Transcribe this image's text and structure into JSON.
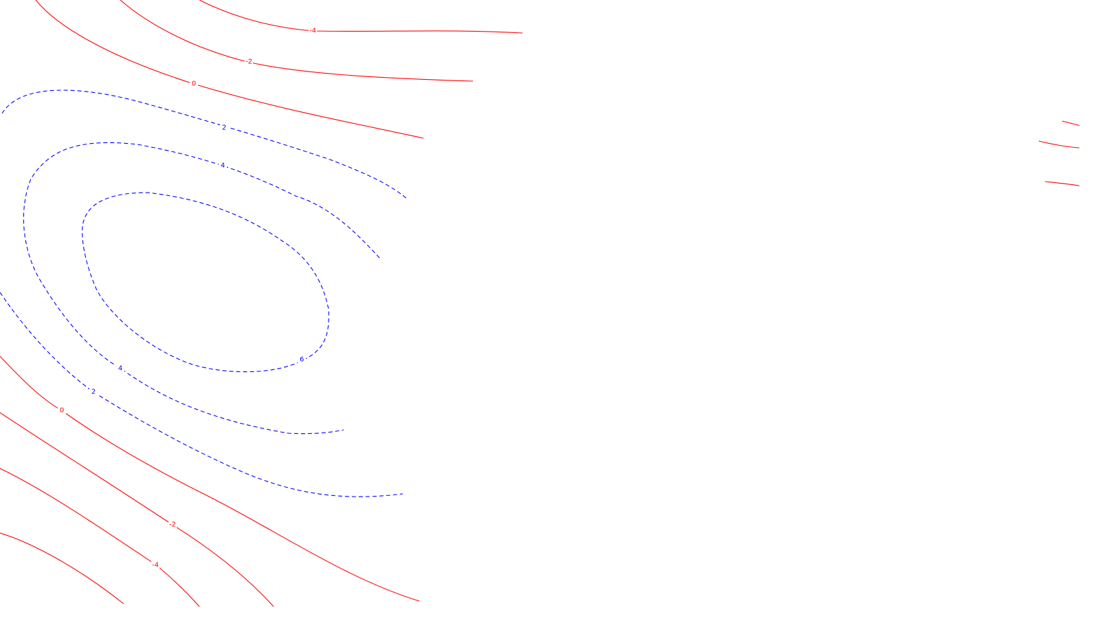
{
  "chart_data": {
    "type": "contour",
    "title": "",
    "xlabel": "",
    "ylabel": "",
    "grid": false,
    "axes_visible": false,
    "levels": [
      -4,
      -2,
      0,
      2,
      4,
      6
    ],
    "positive_style": {
      "color": "#0000ff",
      "dash": "dashed"
    },
    "negative_style": {
      "color": "#ff0000",
      "dash": "solid"
    },
    "zero_style": {
      "color": "#ff0000",
      "dash": "solid"
    },
    "level_labels": [
      {
        "level": -4,
        "text": "-4"
      },
      {
        "level": -2,
        "text": "-2"
      },
      {
        "level": 0,
        "text": "0"
      },
      {
        "level": 2,
        "text": "2"
      },
      {
        "level": 4,
        "text": "4"
      },
      {
        "level": 0,
        "text": "0"
      },
      {
        "level": 2,
        "text": "2"
      },
      {
        "level": 4,
        "text": "4"
      },
      {
        "level": 6,
        "text": "6"
      },
      {
        "level": -2,
        "text": "-2"
      },
      {
        "level": -4,
        "text": "-4"
      }
    ]
  }
}
